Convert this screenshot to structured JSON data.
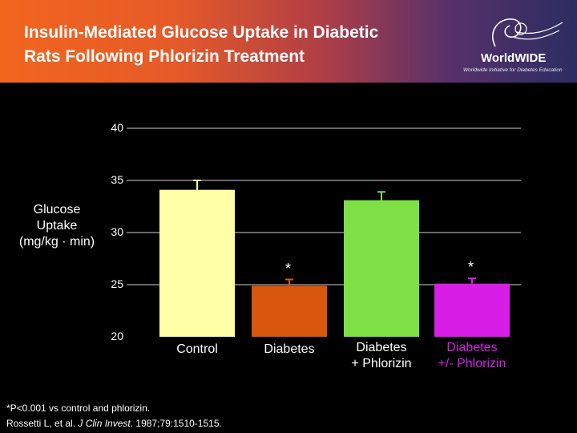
{
  "header": {
    "title_line1": "Insulin-Mediated Glucose Uptake in Diabetic",
    "title_line2": "Rats Following Phlorizin Treatment"
  },
  "logo": {
    "name": "WorldWIDE",
    "tagline": "Worldwide Initiative for Diabetes Education"
  },
  "chart_data": {
    "type": "bar",
    "ylabel_lines": [
      "Glucose",
      "Uptake",
      "(mg/kg · min)"
    ],
    "ylim": [
      20,
      40
    ],
    "yticks": [
      20,
      25,
      30,
      35,
      40
    ],
    "grid": true,
    "categories": [
      {
        "lines": [
          "Control"
        ],
        "color": "#ffffa8"
      },
      {
        "lines": [
          "Diabetes"
        ],
        "color": "#d8560e"
      },
      {
        "lines": [
          "Diabetes",
          "+ Phlorizin"
        ],
        "color": "#7ee044"
      },
      {
        "lines": [
          "Diabetes",
          "+/- Phlorizin"
        ],
        "color": "#d81ee6"
      }
    ],
    "values": [
      34.1,
      24.9,
      33.1,
      25.1
    ],
    "error": [
      0.9,
      0.6,
      0.8,
      0.5
    ],
    "significance": [
      "",
      "*",
      "",
      "*"
    ]
  },
  "footnote": {
    "line1": "*P<0.001 vs control and phlorizin.",
    "line2_pre": "Rossetti L, et al. ",
    "journal": "J Clin Invest",
    "line2_post": ". 1987;79:1510-1515."
  }
}
